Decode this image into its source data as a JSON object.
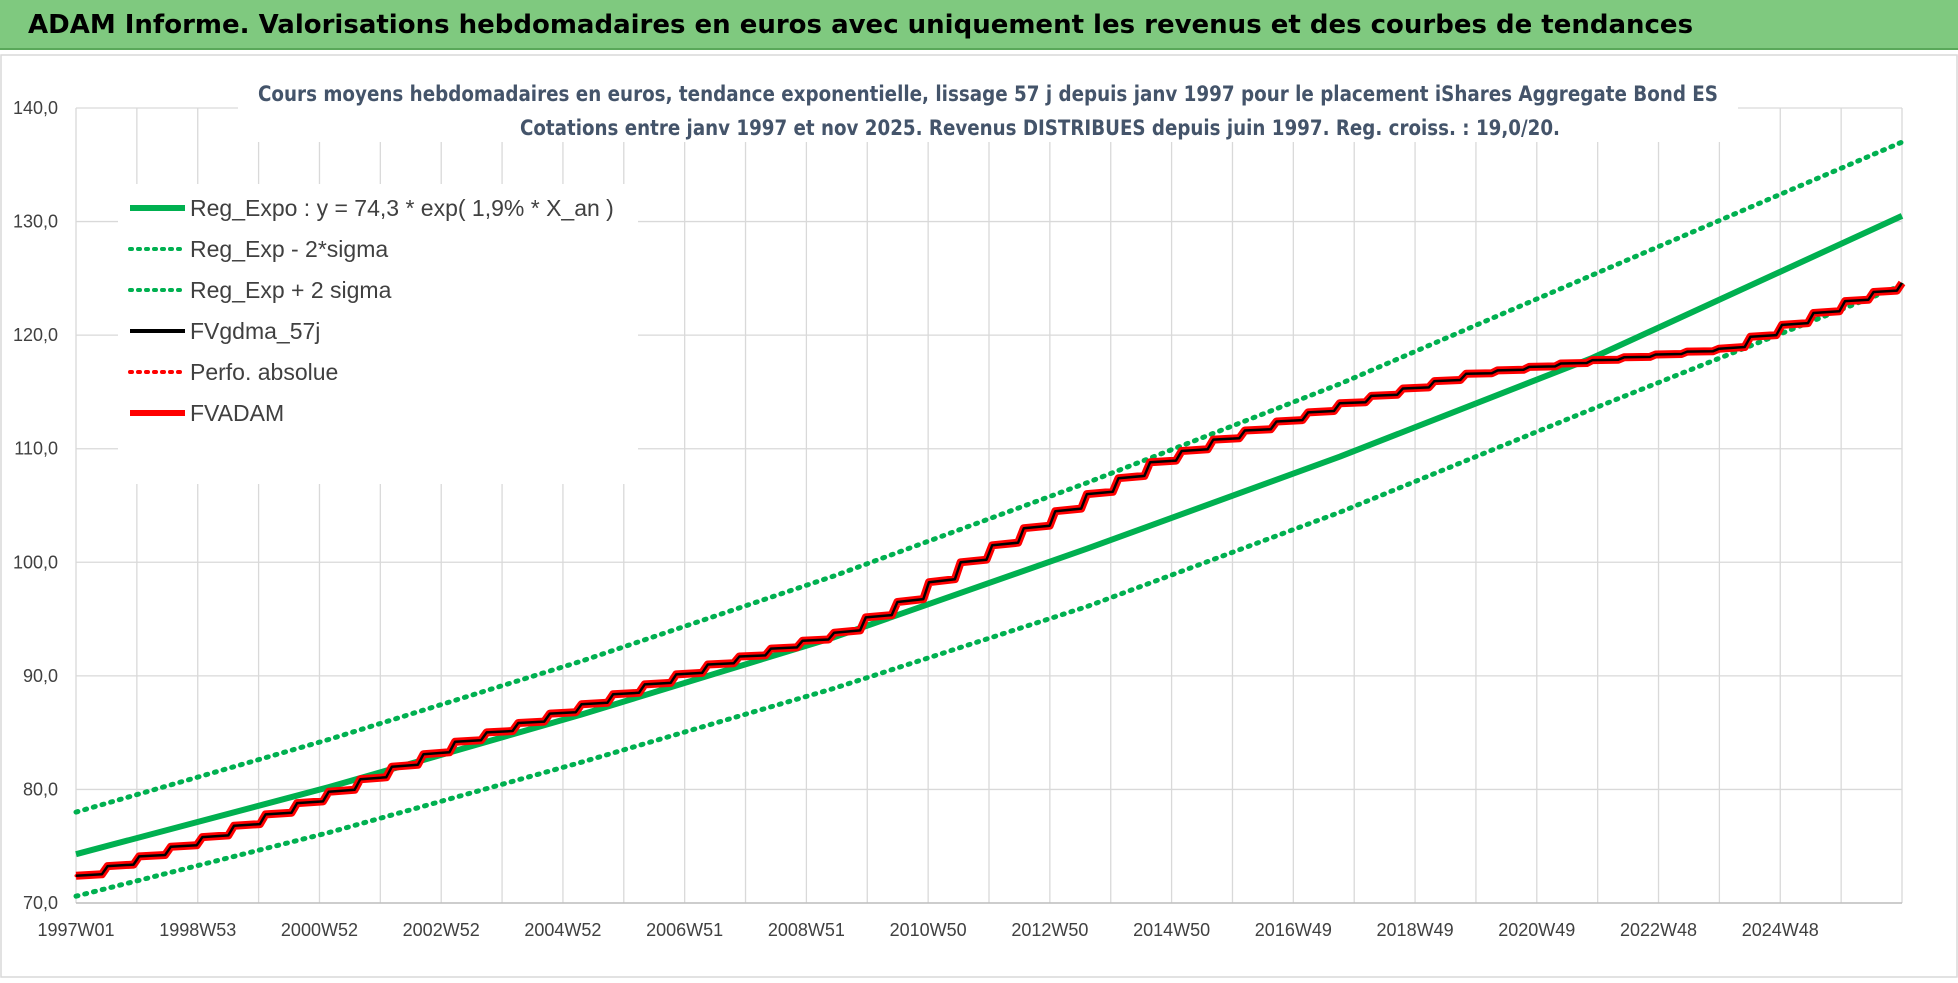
{
  "header": {
    "title": "ADAM Informe. Valorisations hebdomadaires en euros avec uniquement les revenus et des courbes de tendances"
  },
  "chart_data": {
    "type": "line",
    "title": "Cours moyens hebdomadaires en euros, tendance exponentielle, lissage 57 j depuis janv 1997 pour le placement iShares Aggregate Bond ES",
    "subtitle": "Cotations entre janv 1997 et nov 2025. Revenus DISTRIBUES depuis juin 1997. Reg. croiss. : 19,0/20.",
    "xlabel": "",
    "ylabel": "",
    "x_tick_labels": [
      "1997W01",
      "1998W53",
      "2000W52",
      "2002W52",
      "2004W52",
      "2006W51",
      "2008W51",
      "2010W50",
      "2012W50",
      "2014W50",
      "2016W49",
      "2018W49",
      "2020W49",
      "2022W48",
      "2024W48"
    ],
    "x_range": [
      1997.0,
      2025.9
    ],
    "y_tick_labels": [
      "70,0",
      "80,0",
      "90,0",
      "100,0",
      "110,0",
      "120,0",
      "130,0",
      "140,0"
    ],
    "ylim": [
      70,
      140
    ],
    "grid": true,
    "legend_position": "top-left",
    "series": [
      {
        "name": "Reg_Expo : y = 74,3 * exp( 1,9% *  X_an )",
        "color": "#00b050",
        "style": "solid-thick",
        "x": [
          1997.0,
          2001.0,
          2005.0,
          2009.0,
          2013.0,
          2017.0,
          2021.0,
          2025.9
        ],
        "values": [
          74.3,
          80.2,
          86.6,
          93.4,
          101.2,
          109.3,
          118.0,
          130.5
        ]
      },
      {
        "name": "Reg_Exp - 2*sigma",
        "color": "#00b050",
        "style": "dotted",
        "x": [
          1997.0,
          2001.0,
          2005.0,
          2009.0,
          2013.0,
          2017.0,
          2021.0,
          2025.9
        ],
        "values": [
          70.6,
          76.2,
          82.4,
          88.9,
          96.1,
          104.4,
          113.5,
          124.4
        ]
      },
      {
        "name": "Reg_Exp + 2 sigma",
        "color": "#00b050",
        "style": "dotted",
        "x": [
          1997.0,
          2001.0,
          2005.0,
          2009.0,
          2013.0,
          2017.0,
          2021.0,
          2025.9
        ],
        "values": [
          78.0,
          84.4,
          91.3,
          98.8,
          107.0,
          115.7,
          125.3,
          137.0
        ]
      },
      {
        "name": "FVgdma_57j",
        "color": "#000000",
        "style": "solid",
        "x": [
          1997.0,
          1999.0,
          2001.0,
          2003.0,
          2005.0,
          2007.0,
          2009.0,
          2010.0,
          2011.0,
          2012.0,
          2013.0,
          2014.0,
          2015.0,
          2017.0,
          2019.0,
          2021.0,
          2023.0,
          2025.0,
          2025.9
        ],
        "values": [
          72.4,
          75.8,
          79.8,
          84.2,
          87.5,
          91.0,
          93.8,
          96.5,
          100.0,
          103.0,
          106.0,
          108.8,
          110.8,
          114.0,
          116.6,
          117.8,
          118.8,
          123.0,
          124.6
        ]
      },
      {
        "name": "Perfo. absolue",
        "color": "#ff0000",
        "style": "dotted",
        "x": [
          1997.0,
          1999.0,
          2001.0,
          2003.0,
          2005.0,
          2007.0,
          2009.0,
          2010.0,
          2011.0,
          2012.0,
          2013.0,
          2014.0,
          2015.0,
          2017.0,
          2019.0,
          2021.0,
          2023.0,
          2025.0,
          2025.9
        ],
        "values": [
          72.4,
          75.8,
          79.8,
          84.2,
          87.5,
          91.0,
          93.8,
          96.5,
          100.0,
          103.0,
          106.0,
          108.8,
          110.8,
          114.0,
          116.6,
          117.8,
          118.8,
          123.0,
          124.6
        ]
      },
      {
        "name": "FVADAM",
        "color": "#ff0000",
        "style": "solid-thick",
        "x": [
          1997.0,
          1999.0,
          2001.0,
          2003.0,
          2005.0,
          2007.0,
          2009.0,
          2010.0,
          2011.0,
          2012.0,
          2013.0,
          2014.0,
          2015.0,
          2017.0,
          2019.0,
          2021.0,
          2023.0,
          2025.0,
          2025.9
        ],
        "values": [
          72.4,
          75.8,
          79.8,
          84.2,
          87.5,
          91.0,
          93.8,
          96.5,
          100.0,
          103.0,
          106.0,
          108.8,
          110.8,
          114.0,
          116.6,
          117.8,
          118.8,
          123.0,
          124.6
        ]
      }
    ]
  }
}
